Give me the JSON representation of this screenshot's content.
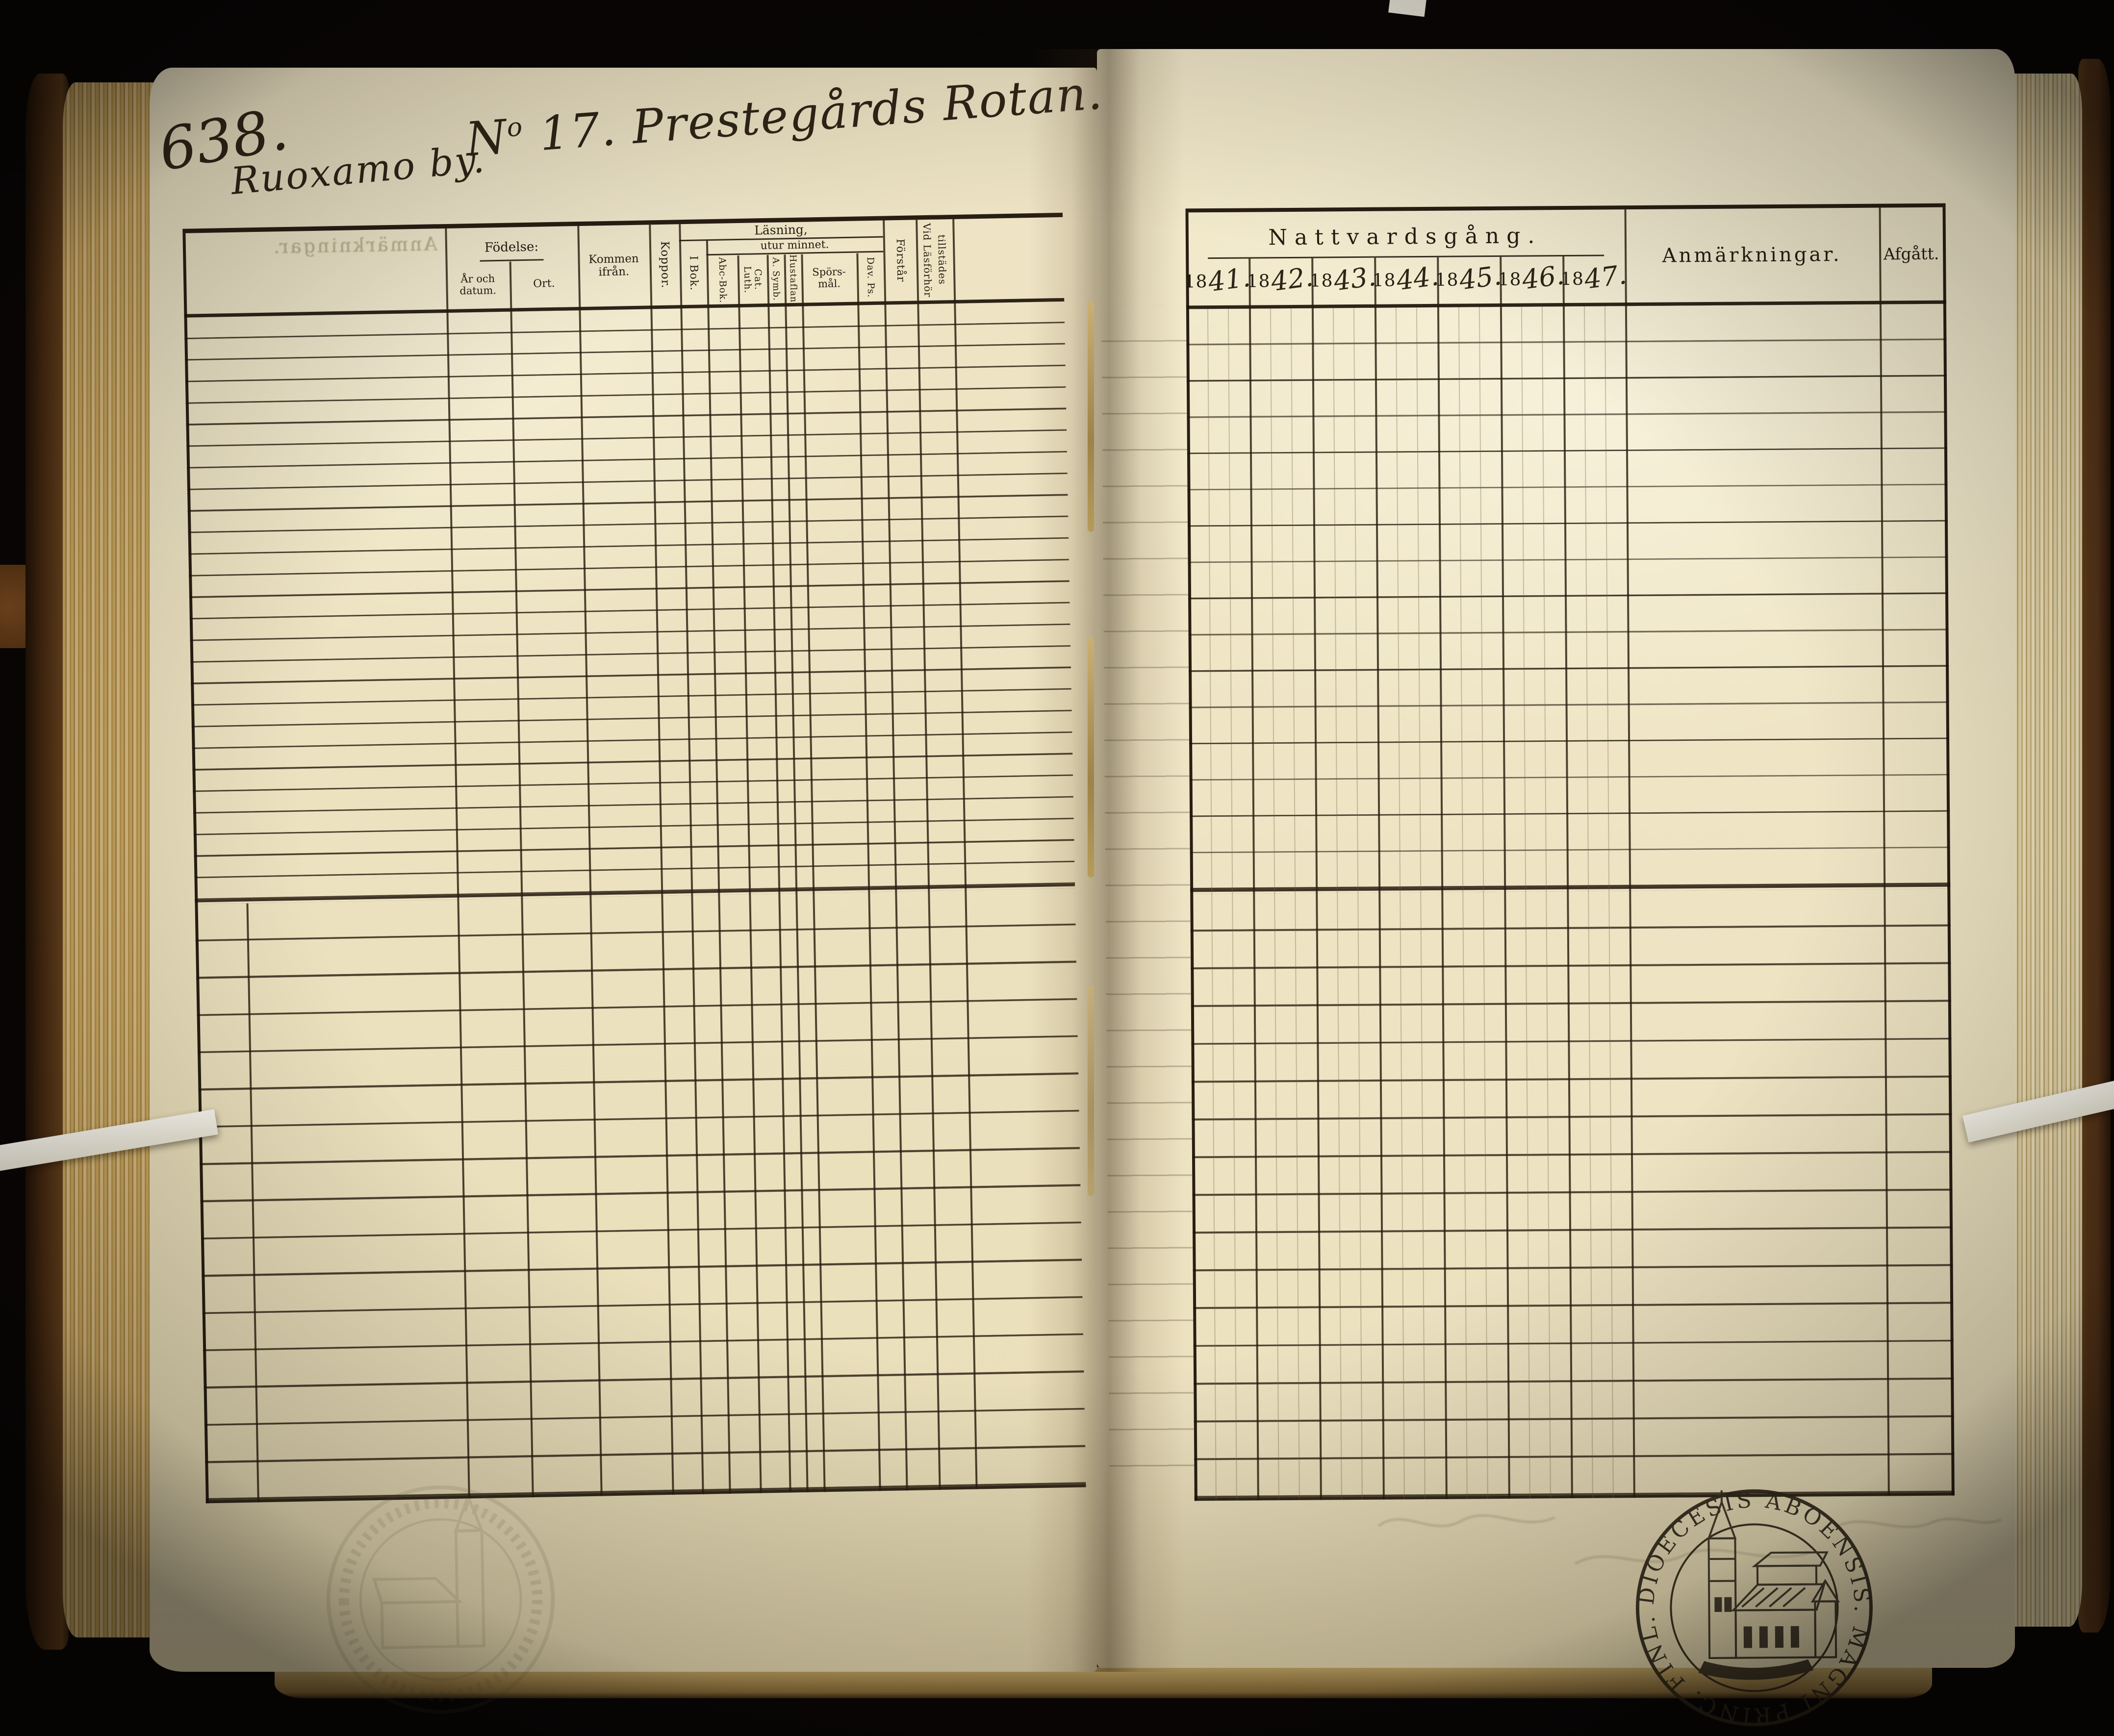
{
  "page": {
    "number": "638.",
    "village": "Ruoxamo by.",
    "title": {
      "prefix": "N",
      "sup": "o",
      "rest": " 17. Prestegårds Rotan."
    }
  },
  "left_table": {
    "fodelse_label": "Födelse:",
    "ar_och_datum": "År och datum.",
    "ort": "Ort.",
    "kommen_ifran": "Kommen ifrån.",
    "koppor": "Koppor.",
    "lasning_label": "Läsning,",
    "i_bok": "I Bok.",
    "utur_minnet_label": "utur minnet.",
    "abc_bok": "Abc-Bok.",
    "luth_cat": "Luth. Cat.",
    "a_symb": "A. Symb.",
    "hustaflan": "Hustaflan",
    "sporsmal": "Spörs-mål.",
    "dav_ps": "Dav. Ps.",
    "forstar": "Förstår",
    "vid_lasforhor": "Vid Läsförhör tillstädes"
  },
  "right_table": {
    "nattvardsgang": "Nattvardsgång.",
    "years": [
      {
        "printed": "18",
        "written": "41."
      },
      {
        "printed": "18",
        "written": "42."
      },
      {
        "printed": "18",
        "written": "43."
      },
      {
        "printed": "18",
        "written": "44."
      },
      {
        "printed": "18",
        "written": "45."
      },
      {
        "printed": "18",
        "written": "46."
      },
      {
        "printed": "18",
        "written": "47."
      }
    ],
    "anmarkningar": "Anmärkningar.",
    "afgatt": "Afgått."
  },
  "ghosts": {
    "anmarkningar_showthrough": "Anmärkningar."
  },
  "stamp": {
    "ring_text": "DIOECESIS ABOENSIS. MAGNI PRINC. FINL."
  },
  "colors": {
    "ink": "#241c10",
    "page": "#eee4c3",
    "leather": "#4a2c12",
    "background": "#070505"
  }
}
